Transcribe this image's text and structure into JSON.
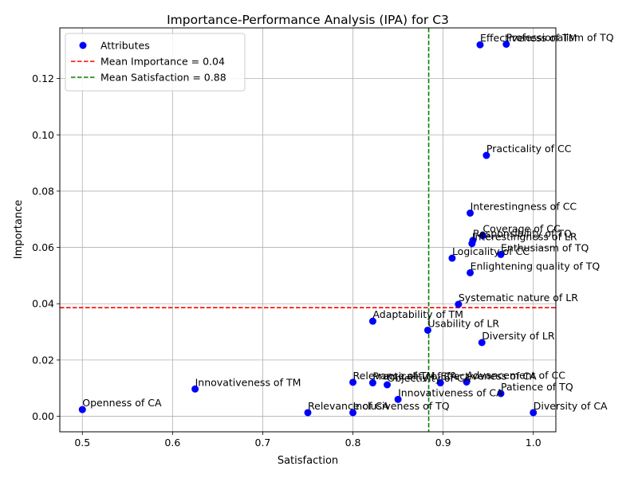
{
  "chart_data": {
    "type": "scatter",
    "title": "Importance-Performance Analysis (IPA) for C3",
    "xlabel": "Satisfaction",
    "ylabel": "Importance",
    "xlim": [
      0.475,
      1.025
    ],
    "ylim": [
      -0.0055,
      0.138
    ],
    "xticks": [
      0.5,
      0.6,
      0.7,
      0.8,
      0.9,
      1.0
    ],
    "xtick_labels": [
      "0.5",
      "0.6",
      "0.7",
      "0.8",
      "0.9",
      "1.0"
    ],
    "yticks": [
      0.0,
      0.02,
      0.04,
      0.06,
      0.08,
      0.1,
      0.12
    ],
    "ytick_labels": [
      "0.00",
      "0.02",
      "0.04",
      "0.06",
      "0.08",
      "0.10",
      "0.12"
    ],
    "grid": true,
    "legend_position": "top-left",
    "point_color": "#0000ff",
    "mean_importance": {
      "value": 0.0386,
      "label": "Mean Importance = 0.04",
      "color": "#ff0000"
    },
    "mean_satisfaction": {
      "value": 0.884,
      "label": "Mean Satisfaction = 0.88",
      "color": "#008000"
    },
    "series": [
      {
        "name": "Attributes",
        "points": [
          {
            "label": "Effectiveness of TM",
            "x": 0.941,
            "y": 0.132
          },
          {
            "label": "Professionalism of TQ",
            "x": 0.97,
            "y": 0.1322
          },
          {
            "label": "Practicality of CC",
            "x": 0.948,
            "y": 0.0927
          },
          {
            "label": "Interestingness of CC",
            "x": 0.93,
            "y": 0.0722
          },
          {
            "label": "Coverage of CC",
            "x": 0.944,
            "y": 0.0642
          },
          {
            "label": "Responsibility of TQ",
            "x": 0.933,
            "y": 0.0625
          },
          {
            "label": "Interestingness of LR",
            "x": 0.932,
            "y": 0.0614
          },
          {
            "label": "Enthusiasm of TQ",
            "x": 0.964,
            "y": 0.0575
          },
          {
            "label": "Logicality of CC",
            "x": 0.91,
            "y": 0.0562
          },
          {
            "label": "Enlightening quality of TQ",
            "x": 0.93,
            "y": 0.051
          },
          {
            "label": "Systematic nature of LR",
            "x": 0.917,
            "y": 0.0398
          },
          {
            "label": "Adaptability of TM",
            "x": 0.822,
            "y": 0.0338
          },
          {
            "label": "Usability of LR",
            "x": 0.883,
            "y": 0.0306
          },
          {
            "label": "Diversity of LR",
            "x": 0.943,
            "y": 0.0262
          },
          {
            "label": "Relevance of TM",
            "x": 0.8,
            "y": 0.0121
          },
          {
            "label": "Practicality of CA",
            "x": 0.822,
            "y": 0.0119
          },
          {
            "label": "Objectivity of CA",
            "x": 0.838,
            "y": 0.0112
          },
          {
            "label": "Effectiveness of CA",
            "x": 0.897,
            "y": 0.0119
          },
          {
            "label": "Advancement of CC",
            "x": 0.926,
            "y": 0.0122
          },
          {
            "label": "Innovativeness of TM",
            "x": 0.625,
            "y": 0.0097
          },
          {
            "label": "Patience of TQ",
            "x": 0.964,
            "y": 0.0081
          },
          {
            "label": "Innovativeness of CA",
            "x": 0.85,
            "y": 0.006
          },
          {
            "label": "Openness of CA",
            "x": 0.5,
            "y": 0.0024
          },
          {
            "label": "Relevance of CA",
            "x": 0.75,
            "y": 0.0013
          },
          {
            "label": "Inclusiveness of TQ",
            "x": 0.8,
            "y": 0.0013
          },
          {
            "label": "Diversity of CA",
            "x": 1.0,
            "y": 0.0013
          }
        ]
      }
    ]
  }
}
